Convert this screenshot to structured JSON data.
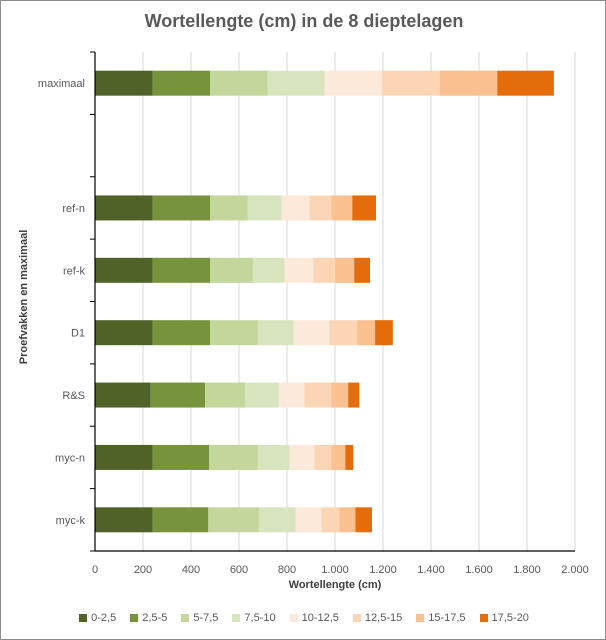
{
  "chart_data": {
    "type": "bar",
    "orientation": "horizontal",
    "stacked": true,
    "title": "Wortellengte (cm) in de 8 dieptelagen",
    "xlabel": "Wortellengte (cm)",
    "ylabel": "Proefvakken en maximaal",
    "xlim": [
      0,
      2000
    ],
    "xticks": [
      "0",
      "200",
      "400",
      "600",
      "800",
      "1.000",
      "1.200",
      "1.400",
      "1.600",
      "1.800",
      "2.000"
    ],
    "grid": true,
    "legend_position": "bottom",
    "categories": [
      "maximaal",
      "",
      "ref-n",
      "ref-k",
      "D1",
      "R&S",
      "myc-n",
      "myc-k"
    ],
    "series": [
      {
        "name": "0-2,5",
        "color": "#4F6228",
        "values": [
          240,
          0,
          240,
          240,
          240,
          232,
          240,
          240
        ]
      },
      {
        "name": "2,5-5",
        "color": "#77933C",
        "values": [
          240,
          0,
          240,
          240,
          240,
          227,
          236,
          232
        ]
      },
      {
        "name": "5-7,5",
        "color": "#C3D69B",
        "values": [
          240,
          0,
          157,
          178,
          199,
          166,
          203,
          211
        ]
      },
      {
        "name": "7,5-10",
        "color": "#D7E4BD",
        "values": [
          236,
          0,
          141,
          132,
          149,
          141,
          132,
          153
        ]
      },
      {
        "name": "10-12,5",
        "color": "#FDE9D9",
        "values": [
          240,
          0,
          116,
          120,
          149,
          107,
          103,
          107
        ]
      },
      {
        "name": "12,5-15",
        "color": "#FCD5B5",
        "values": [
          240,
          0,
          91,
          91,
          115,
          112,
          71,
          75
        ]
      },
      {
        "name": "15-17,5",
        "color": "#FAC090",
        "values": [
          240,
          0,
          87,
          79,
          75,
          70,
          58,
          67
        ]
      },
      {
        "name": "17,5-20",
        "color": "#E46C0A",
        "values": [
          236,
          0,
          99,
          66,
          74,
          46,
          33,
          69
        ]
      }
    ]
  }
}
